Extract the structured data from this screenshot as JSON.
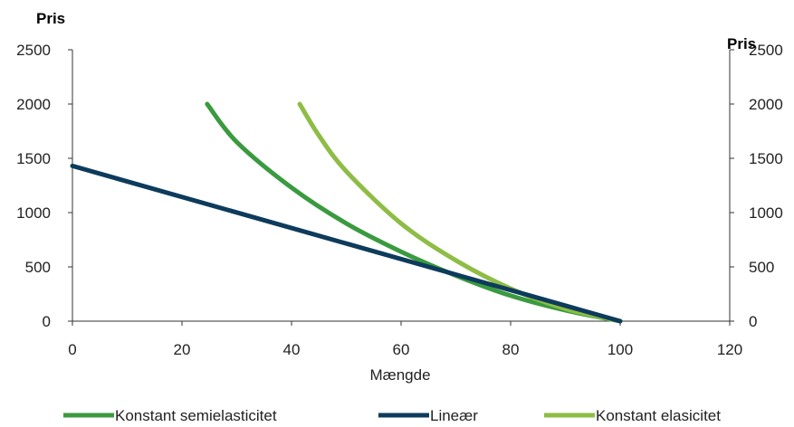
{
  "chart_data": {
    "type": "line",
    "xlabel": "Mængde",
    "ylabel_left": "Pris",
    "ylabel_right": "Pris",
    "xlim": [
      0,
      120
    ],
    "ylim": [
      0,
      2500
    ],
    "x_ticks": [
      "0",
      "20",
      "40",
      "60",
      "80",
      "100",
      "120"
    ],
    "y_ticks": [
      "0",
      "500",
      "1000",
      "1500",
      "2000",
      "2500"
    ],
    "grid": false,
    "legend_position": "bottom",
    "series": [
      {
        "name": "Konstant semielasticitet",
        "color": "#3a9a3f",
        "points": [
          [
            24.6,
            2000
          ],
          [
            30,
            1650
          ],
          [
            40,
            1230
          ],
          [
            50,
            900
          ],
          [
            60,
            640
          ],
          [
            70,
            420
          ],
          [
            80,
            235
          ],
          [
            90,
            100
          ],
          [
            100,
            0
          ]
        ]
      },
      {
        "name": "Lineær",
        "color": "#0d3b5c",
        "points": [
          [
            0,
            1430
          ],
          [
            100,
            0
          ]
        ]
      },
      {
        "name": "Konstant elasicitet",
        "color": "#8dbd45",
        "points": [
          [
            41.5,
            2000
          ],
          [
            45,
            1710
          ],
          [
            50,
            1380
          ],
          [
            60,
            900
          ],
          [
            70,
            560
          ],
          [
            80,
            300
          ],
          [
            90,
            115
          ],
          [
            100,
            0
          ]
        ]
      }
    ]
  }
}
